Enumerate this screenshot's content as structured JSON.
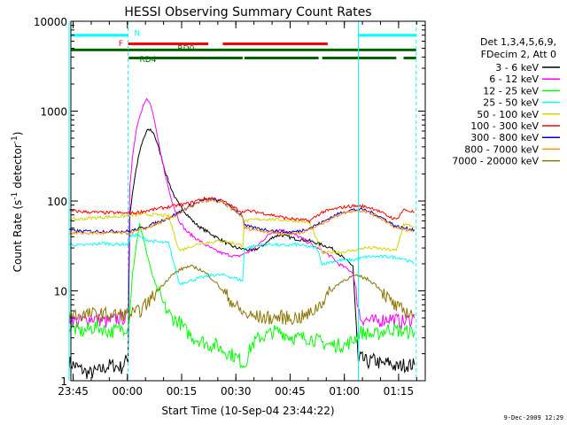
{
  "chart_data": {
    "type": "line",
    "title": "HESSI Observing Summary Count Rates",
    "xlabel": "Start Time (10-Sep-04 23:44:22)",
    "ylabel": "Count Rate (s⁻¹ detector⁻¹)",
    "ylabel_main": "Count Rate (s",
    "ylabel_sup1": "-1",
    "ylabel_mid": " detector",
    "ylabel_sup2": "-1",
    "ylabel_end": ")",
    "yscale": "log",
    "xlim": [
      0,
      98
    ],
    "ylim": [
      1,
      10000
    ],
    "x_units": "minutes after 23:44:22",
    "x_ticks": [
      {
        "t": 0.63,
        "label": "23:45"
      },
      {
        "t": 15.63,
        "label": "00:00"
      },
      {
        "t": 30.63,
        "label": "00:15"
      },
      {
        "t": 45.63,
        "label": "00:30"
      },
      {
        "t": 60.63,
        "label": "00:45"
      },
      {
        "t": 75.63,
        "label": "01:00"
      },
      {
        "t": 90.63,
        "label": "01:15"
      }
    ],
    "y_ticks": [
      {
        "v": 1,
        "label": "1"
      },
      {
        "v": 10,
        "label": "10"
      },
      {
        "v": 100,
        "label": "100"
      },
      {
        "v": 1000,
        "label": "1000"
      },
      {
        "v": 10000,
        "label": "10000"
      }
    ],
    "legend": {
      "position": "right",
      "header": [
        "Det 1,3,4,5,6,9,",
        "FDecim 2, Att 0"
      ],
      "entries": [
        {
          "label": "3 - 6 keV",
          "color": "#000000"
        },
        {
          "label": "6 - 12 keV",
          "color": "#ff00ff"
        },
        {
          "label": "12 - 25 keV",
          "color": "#00ff00"
        },
        {
          "label": "25 - 50 keV",
          "color": "#00ffff"
        },
        {
          "label": "50 - 100 keV",
          "color": "#d4d400"
        },
        {
          "label": "100 - 300 keV",
          "color": "#ff0000"
        },
        {
          "label": "300 - 800 keV",
          "color": "#0000c0"
        },
        {
          "label": "800 - 7000 keV",
          "color": "#ff8c00"
        },
        {
          "label": "7000 - 20000 keV",
          "color": "#8b7500"
        }
      ]
    },
    "vertical_lines": [
      {
        "t": -0.5,
        "style": "solid"
      },
      {
        "t": 15.8,
        "style": "dashed"
      },
      {
        "t": 79.5,
        "style": "solid"
      },
      {
        "t": 95.5,
        "style": "dashed"
      }
    ],
    "flag_bars": [
      {
        "name": "N",
        "color": "#00ffff",
        "y": 7000,
        "segments": [
          [
            0,
            15.8
          ],
          [
            79.5,
            95.5
          ]
        ],
        "label": {
          "text": "N",
          "t": 17.5,
          "y": 7400
        }
      },
      {
        "name": "F",
        "color": "#ff0000",
        "y": 5600,
        "segments": [
          [
            15.8,
            38
          ],
          [
            42,
            71
          ]
        ],
        "label": {
          "text": "F",
          "t": 13.2,
          "y": 5700
        }
      },
      {
        "name": "RD0",
        "color": "#006400",
        "y": 4800,
        "segments": [
          [
            0,
            95.5
          ]
        ],
        "label": {
          "text": "RD0",
          "t": 29.5,
          "y": 5000
        }
      },
      {
        "name": "RD4",
        "color": "#006400",
        "y": 3900,
        "segments": [
          [
            16,
            47.5
          ],
          [
            48,
            68.5
          ],
          [
            69.5,
            90
          ],
          [
            92,
            95.5
          ]
        ],
        "label": {
          "text": "RD4",
          "t": 19.0,
          "y": 3750
        }
      }
    ],
    "series": [
      {
        "name": "3 - 6 keV",
        "color": "#000000",
        "x": [
          -0.5,
          2,
          5,
          8,
          11,
          14,
          15.8,
          16.3,
          17,
          18,
          19,
          20,
          21,
          22,
          23,
          24,
          25,
          26,
          27,
          28,
          29,
          30,
          32,
          34,
          36,
          38,
          40,
          42,
          44,
          46,
          48,
          50,
          52,
          54,
          56,
          58,
          60,
          62,
          64,
          66,
          68,
          70,
          72,
          74,
          76,
          78,
          79.5,
          80,
          82,
          84,
          86,
          88,
          90,
          92,
          95
        ],
        "y": [
          1.6,
          1.4,
          1.2,
          1.3,
          1.5,
          1.4,
          1.8,
          70,
          120,
          220,
          350,
          480,
          600,
          620,
          560,
          420,
          310,
          220,
          165,
          130,
          105,
          90,
          72,
          58,
          50,
          45,
          40,
          36,
          32,
          30,
          29,
          28,
          30,
          34,
          40,
          42,
          40,
          38,
          37,
          36,
          34,
          32,
          30,
          26,
          22,
          19,
          1.5,
          1.8,
          1.6,
          1.7,
          1.5,
          1.6,
          1.4,
          1.5,
          1.5
        ]
      },
      {
        "name": "6 - 12 keV",
        "color": "#ff00ff",
        "x": [
          -0.5,
          2,
          6,
          10,
          14,
          15.8,
          16.3,
          17,
          18,
          19,
          20,
          21,
          22,
          23,
          24,
          25,
          26,
          27,
          28,
          29,
          30,
          31,
          32,
          34,
          36,
          38,
          40,
          42,
          44,
          46,
          48,
          50,
          52,
          54,
          56,
          58,
          60,
          62,
          64,
          66,
          68,
          70,
          72,
          74,
          76,
          78,
          80,
          84,
          88,
          92,
          95
        ],
        "y": [
          5,
          4.5,
          5,
          4.5,
          5,
          5,
          150,
          300,
          600,
          900,
          1150,
          1350,
          1200,
          800,
          500,
          320,
          200,
          140,
          100,
          75,
          60,
          52,
          46,
          40,
          35,
          31,
          28,
          26,
          25,
          24,
          26,
          28,
          33,
          40,
          46,
          48,
          45,
          42,
          38,
          34,
          30,
          27,
          24,
          20,
          18,
          16,
          5,
          4.5,
          5,
          4.5,
          5
        ]
      },
      {
        "name": "12 - 25 keV",
        "color": "#00ff00",
        "x": [
          -0.5,
          3,
          7,
          11,
          15.8,
          16.3,
          17,
          18,
          19,
          20,
          21,
          22,
          23,
          24,
          25,
          26,
          28,
          30,
          32,
          34,
          36,
          38,
          40,
          42,
          44,
          46,
          48,
          50,
          52,
          54,
          56,
          58,
          60,
          62,
          64,
          66,
          68,
          70,
          72,
          74,
          76,
          78,
          80,
          84,
          88,
          92,
          95
        ],
        "y": [
          4,
          3.5,
          4,
          3.5,
          4,
          6,
          15,
          30,
          55,
          40,
          26,
          18,
          13,
          10,
          8,
          6.5,
          5,
          4.5,
          3.5,
          3,
          2.8,
          2.5,
          2.5,
          2.2,
          2,
          1.8,
          1.5,
          2.5,
          3,
          3.2,
          3.5,
          3.5,
          3.2,
          3,
          3,
          3,
          2.8,
          2.6,
          2.5,
          2.5,
          2.5,
          2.8,
          3.5,
          3.2,
          3.8,
          3.5,
          3.5
        ]
      },
      {
        "name": "25 - 50 keV",
        "color": "#00ffff",
        "x": [
          -0.5,
          3,
          6,
          9,
          12,
          15.8,
          16.3,
          18,
          20,
          22,
          24,
          27,
          30,
          33,
          36,
          39,
          42,
          45,
          47.5,
          48,
          50,
          52,
          54,
          56,
          58,
          60,
          62,
          64,
          66,
          68,
          69.5,
          72,
          75,
          78,
          80,
          82,
          85,
          88,
          92,
          95
        ],
        "y": [
          33,
          32,
          33,
          34,
          33,
          33,
          40,
          42,
          38,
          36,
          35,
          34,
          12,
          13,
          14,
          15,
          15,
          14,
          13,
          30,
          31,
          32,
          33,
          33,
          32,
          32,
          33,
          32,
          31,
          30,
          20,
          21,
          22,
          22,
          23,
          24,
          24,
          24,
          23,
          20
        ]
      },
      {
        "name": "50 - 100 keV",
        "color": "#d4d400",
        "x": [
          -0.5,
          3,
          6,
          9,
          12,
          15.8,
          18,
          21,
          24,
          27,
          30,
          33,
          36,
          39,
          42,
          45,
          47.5,
          48,
          51,
          54,
          57,
          60,
          63,
          66,
          69.5,
          72,
          75,
          78,
          81,
          84,
          87,
          90,
          92,
          95
        ],
        "y": [
          62,
          63,
          65,
          66,
          67,
          68,
          70,
          71,
          70,
          68,
          28,
          31,
          34,
          35,
          36,
          34,
          32,
          60,
          62,
          63,
          62,
          61,
          60,
          58,
          26,
          27,
          27,
          28,
          30,
          30,
          29,
          28,
          55,
          52
        ]
      },
      {
        "name": "100 - 300 keV",
        "color": "#ff0000",
        "x": [
          -0.5,
          3,
          6,
          9,
          12,
          15.8,
          18,
          21,
          24,
          27,
          30,
          33,
          36,
          39,
          42,
          45,
          47.5,
          48,
          51,
          54,
          57,
          60,
          63,
          66,
          69.5,
          72,
          75,
          78,
          81,
          84,
          87,
          90,
          92,
          95
        ],
        "y": [
          78,
          76,
          75,
          74,
          74,
          73,
          74,
          78,
          82,
          86,
          90,
          95,
          105,
          108,
          100,
          85,
          75,
          78,
          76,
          72,
          68,
          64,
          62,
          60,
          75,
          80,
          85,
          88,
          87,
          82,
          70,
          62,
          80,
          75
        ]
      },
      {
        "name": "300 - 800 keV",
        "color": "#0000c0",
        "x": [
          -0.5,
          3,
          6,
          9,
          12,
          15.8,
          18,
          21,
          24,
          27,
          30,
          33,
          36,
          39,
          42,
          45,
          47.5,
          48,
          51,
          54,
          57,
          60,
          63,
          66,
          69.5,
          72,
          75,
          78,
          81,
          84,
          87,
          90,
          92,
          95
        ],
        "y": [
          47,
          46,
          46,
          46,
          46,
          46,
          48,
          52,
          58,
          65,
          75,
          88,
          100,
          104,
          97,
          82,
          68,
          53,
          50,
          48,
          46,
          45,
          46,
          50,
          58,
          66,
          75,
          80,
          80,
          72,
          62,
          52,
          50,
          48
        ]
      },
      {
        "name": "800 - 7000 keV",
        "color": "#ff8c00",
        "x": [
          -0.5,
          3,
          6,
          9,
          12,
          15.8,
          18,
          21,
          24,
          27,
          30,
          33,
          36,
          39,
          42,
          45,
          47.5,
          48,
          51,
          54,
          57,
          60,
          63,
          66,
          69.5,
          72,
          75,
          78,
          81,
          84,
          87,
          90,
          92,
          95
        ],
        "y": [
          44,
          44,
          44,
          44,
          44,
          44,
          46,
          50,
          56,
          63,
          73,
          86,
          98,
          102,
          95,
          80,
          66,
          50,
          48,
          46,
          44,
          43,
          44,
          48,
          56,
          64,
          73,
          78,
          78,
          70,
          60,
          50,
          48,
          46
        ]
      },
      {
        "name": "7000 - 20000 keV",
        "color": "#8b7500",
        "x": [
          -0.5,
          3,
          6,
          9,
          12,
          15.8,
          18,
          20,
          22,
          24,
          26,
          28,
          30,
          32,
          34,
          36,
          38,
          40,
          42,
          44,
          46,
          48,
          50,
          52,
          54,
          56,
          58,
          60,
          62,
          64,
          66,
          68,
          70,
          72,
          74,
          76,
          78,
          80,
          82,
          84,
          86,
          88,
          90,
          92,
          95
        ],
        "y": [
          5.5,
          5.4,
          5.5,
          5.5,
          5.4,
          5.5,
          5.6,
          6.5,
          8,
          10,
          12.5,
          15,
          17,
          18.5,
          18.5,
          17,
          15,
          12.5,
          10,
          8,
          6.5,
          5.5,
          5.2,
          5.1,
          5,
          5,
          5.1,
          5,
          5,
          5.1,
          5.5,
          6.5,
          8,
          10,
          12,
          13.5,
          14.5,
          14.5,
          13.5,
          12,
          10,
          8,
          6.5,
          6,
          5.5
        ]
      }
    ]
  },
  "footer": {
    "date_stamp": "9-Dec-2009 12:29"
  }
}
